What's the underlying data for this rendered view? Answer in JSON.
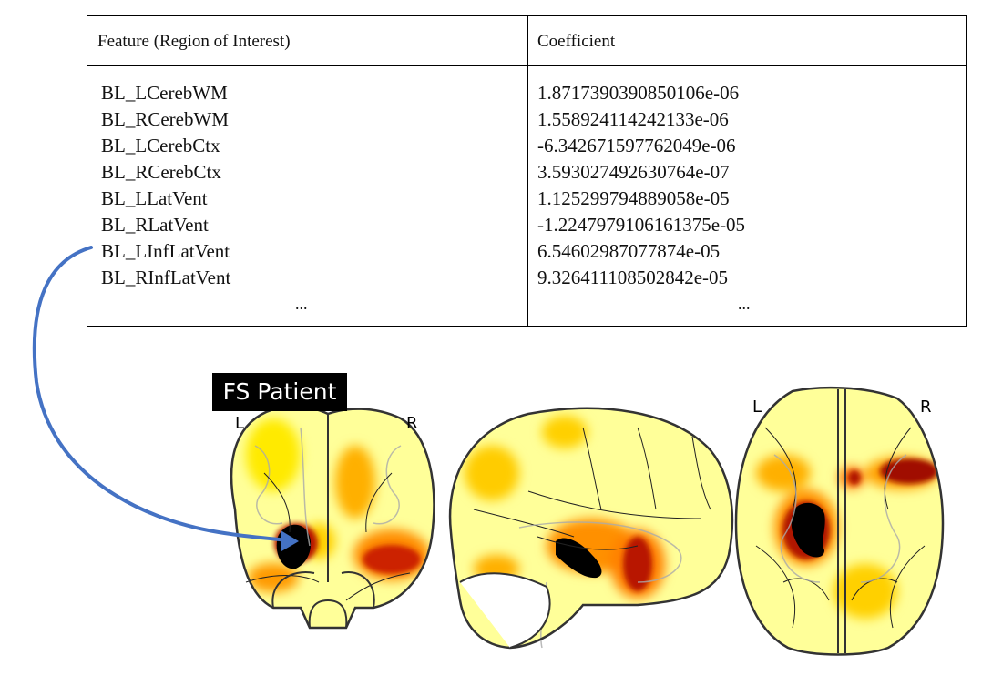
{
  "table": {
    "headers": [
      "Feature (Region of Interest)",
      "Coefficient"
    ],
    "rows": [
      {
        "feature": "BL_LCerebWM",
        "coefficient": "1.8717390390850106e-06"
      },
      {
        "feature": "BL_RCerebWM",
        "coefficient": "1.558924114242133e-06"
      },
      {
        "feature": "BL_LCerebCtx",
        "coefficient": "-6.342671597762049e-06"
      },
      {
        "feature": "BL_RCerebCtx",
        "coefficient": "3.593027492630764e-07"
      },
      {
        "feature": "BL_LLatVent",
        "coefficient": "1.125299794889058e-05"
      },
      {
        "feature": "BL_RLatVent",
        "coefficient": "-1.2247979106161375e-05"
      },
      {
        "feature": "BL_LInfLatVent",
        "coefficient": "6.54602987077874e-05"
      },
      {
        "feature": "BL_RInfLatVent",
        "coefficient": "9.326411108502842e-05"
      }
    ],
    "ellipsis": "..."
  },
  "brain": {
    "patient_label": "FS Patient",
    "coronal": {
      "left": "L",
      "right": "R"
    },
    "axial": {
      "left": "L",
      "right": "R"
    }
  },
  "colors": {
    "arrow": "#4472c4",
    "heat_low": "#ffff66",
    "heat_mid": "#ffcc00",
    "heat_high": "#cc3300",
    "heat_peak": "#8b0000",
    "heat_core": "#000000",
    "outline": "#333333"
  }
}
